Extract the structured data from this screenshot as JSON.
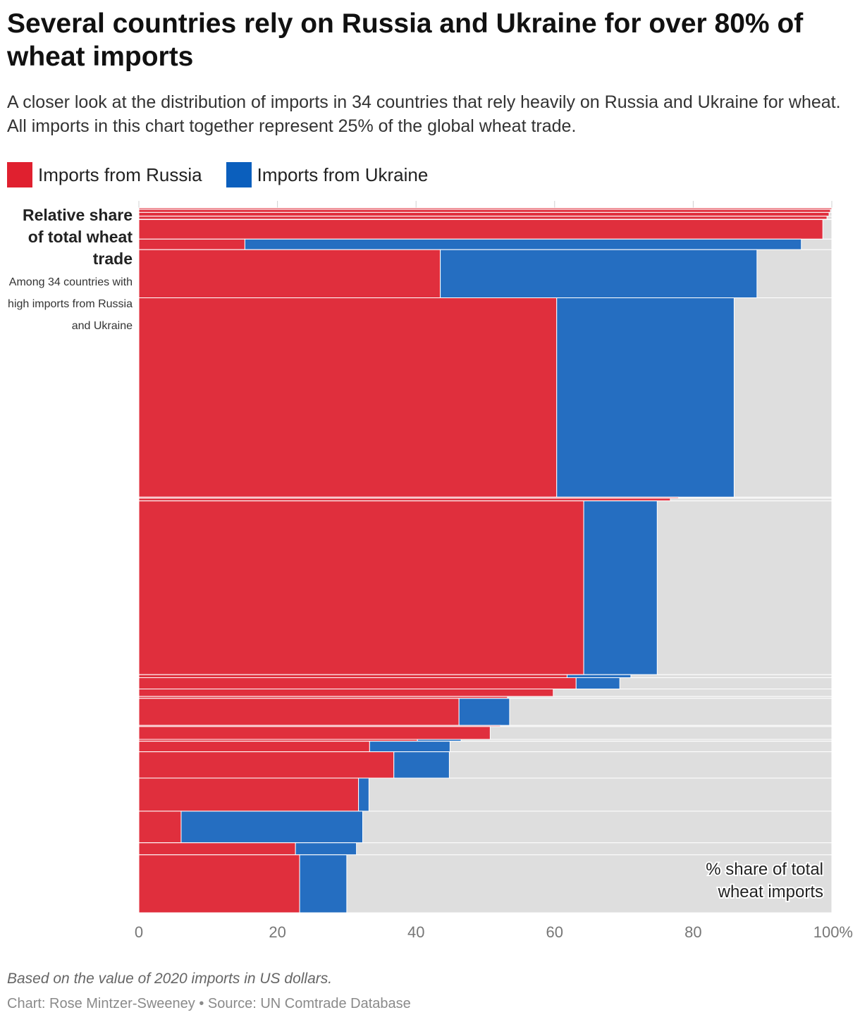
{
  "title": "Several countries rely on Russia and Ukraine for over 80% of wheat imports",
  "subtitle": "A closer look at the distribution of imports in 34 countries that rely heavily on Russia and Ukraine for wheat. All imports in this chart together represent 25% of the global wheat trade.",
  "legend": {
    "russia": {
      "label": "Imports from Russia",
      "color": "#e0202f"
    },
    "ukraine": {
      "label": "Imports from Ukraine",
      "color": "#0b5fbd"
    }
  },
  "side_note": {
    "title": "Relative share of total wheat trade",
    "subtitle": "Among 34 countries with high imports from Russia and Ukraine"
  },
  "footnote": "Based on the value of 2020 imports in US dollars.",
  "credit": "Chart: Rose Mintzer-Sweeney • Source: UN Comtrade Database",
  "chart_data": {
    "type": "bar",
    "subtype": "mekko (variable-width stacked 100% horizontal bars)",
    "xlabel": "% share of total wheat imports",
    "xlim": [
      0,
      100
    ],
    "x_ticks": [
      "0",
      "20",
      "40",
      "60",
      "80",
      "100%"
    ],
    "grid": true,
    "colors": {
      "russia": "#e0202f",
      "ukraine": "#0b5fbd",
      "other": "#dedede"
    },
    "rows": [
      {
        "weight": 0.2,
        "russia": 100,
        "ukraine": 0
      },
      {
        "weight": 0.4,
        "russia": 99.8,
        "ukraine": 0
      },
      {
        "weight": 0.5,
        "russia": 99.6,
        "ukraine": 0
      },
      {
        "weight": 0.4,
        "russia": 99.3,
        "ukraine": 0
      },
      {
        "weight": 0.05,
        "russia": 33.5,
        "ukraine": 0
      },
      {
        "weight": 2.6,
        "russia": 98.7,
        "ukraine": 0
      },
      {
        "weight": 1.4,
        "russia": 15.3,
        "ukraine": 80.3
      },
      {
        "weight": 6.4,
        "russia": 43.5,
        "ukraine": 45.7
      },
      {
        "weight": 26.5,
        "russia": 60.3,
        "ukraine": 25.6
      },
      {
        "weight": 0.15,
        "russia": 77.9,
        "ukraine": 0
      },
      {
        "weight": 0.35,
        "russia": 76.7,
        "ukraine": 0
      },
      {
        "weight": 23.1,
        "russia": 64.2,
        "ukraine": 10.6
      },
      {
        "weight": 0.4,
        "russia": 61.8,
        "ukraine": 9.2
      },
      {
        "weight": 1.5,
        "russia": 63.1,
        "ukraine": 6.3
      },
      {
        "weight": 1.0,
        "russia": 59.8,
        "ukraine": 0
      },
      {
        "weight": 0.25,
        "russia": 53.2,
        "ukraine": 0
      },
      {
        "weight": 3.6,
        "russia": 46.2,
        "ukraine": 7.3
      },
      {
        "weight": 0.15,
        "russia": 52.2,
        "ukraine": 0
      },
      {
        "weight": 1.7,
        "russia": 50.7,
        "ukraine": 0
      },
      {
        "weight": 0.25,
        "russia": 40.2,
        "ukraine": 6.3
      },
      {
        "weight": 1.4,
        "russia": 33.3,
        "ukraine": 11.6
      },
      {
        "weight": 3.5,
        "russia": 36.8,
        "ukraine": 8.0
      },
      {
        "weight": 4.4,
        "russia": 31.7,
        "ukraine": 1.5
      },
      {
        "weight": 4.2,
        "russia": 6.1,
        "ukraine": 26.2
      },
      {
        "weight": 1.6,
        "russia": 22.6,
        "ukraine": 8.8
      },
      {
        "weight": 7.7,
        "russia": 23.2,
        "ukraine": 6.8
      }
    ]
  }
}
